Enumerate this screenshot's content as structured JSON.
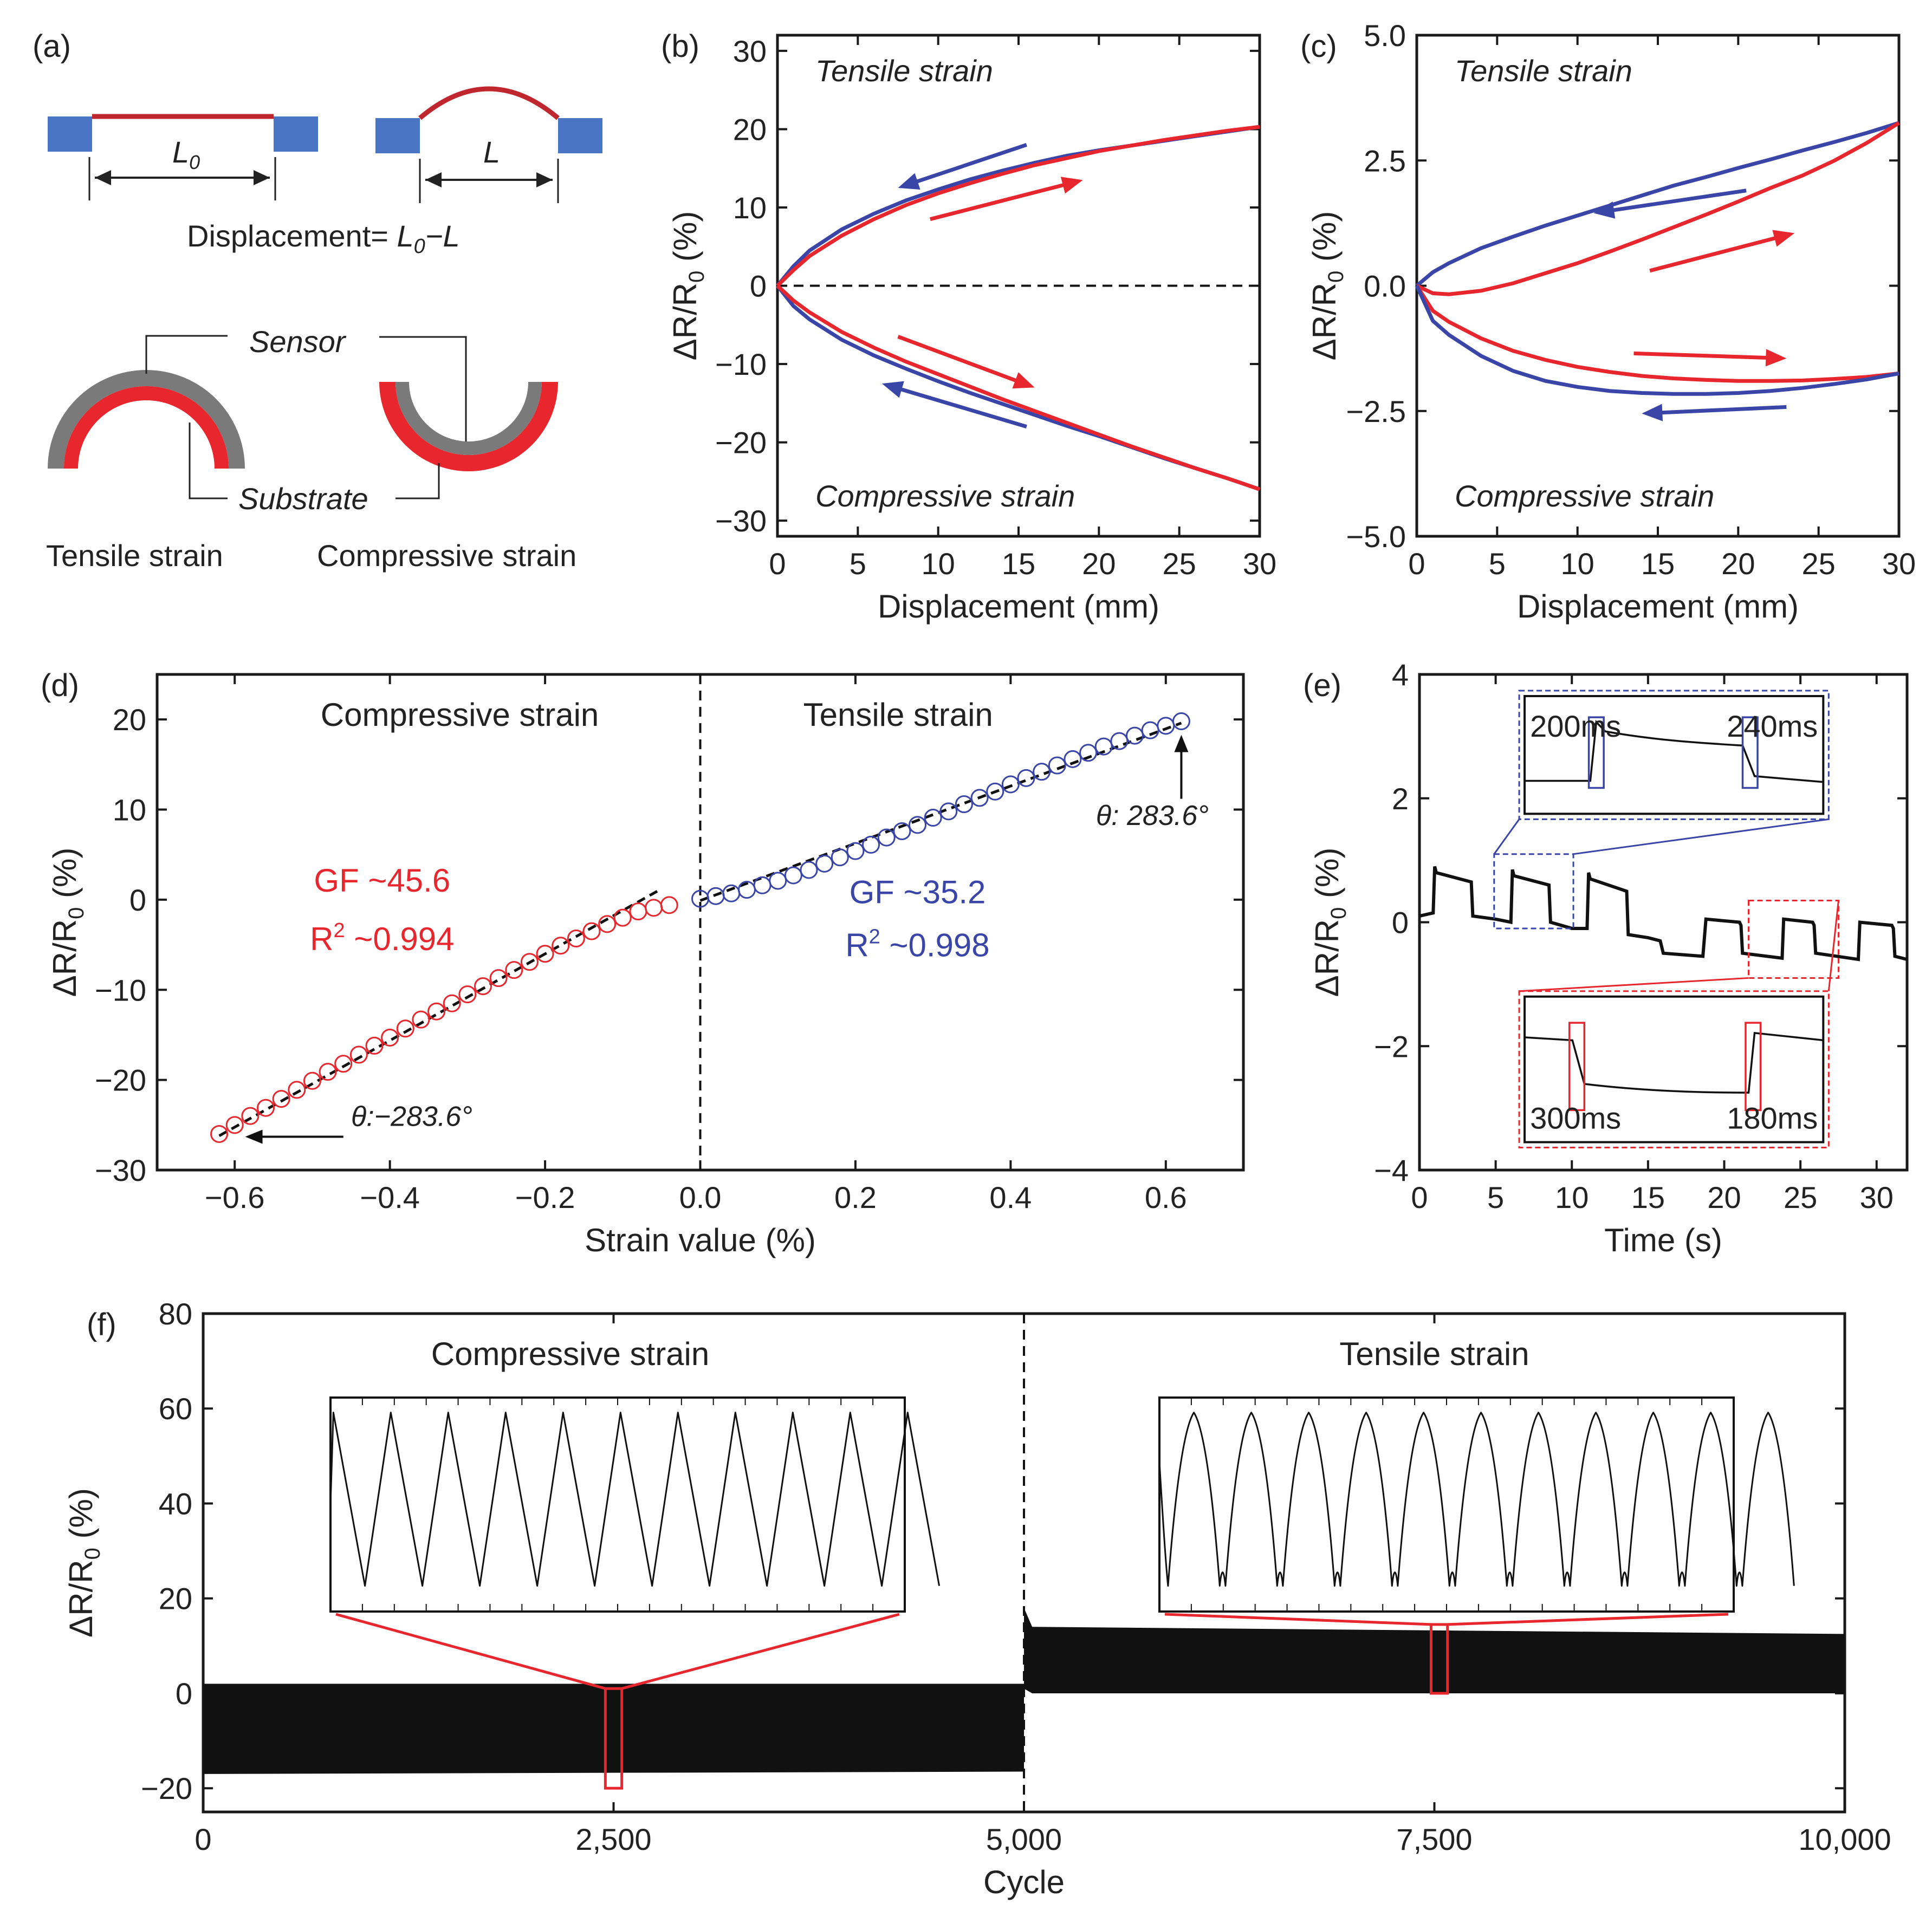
{
  "colors": {
    "red": "#e8262d",
    "blue": "#3a45a8",
    "block": "#4a74c4",
    "gray": "#777777",
    "axis": "#1a1a1a"
  },
  "panel_a": {
    "label": "(a)",
    "L0": "L",
    "L0_sub": "0",
    "L": "L",
    "displacement_prefix": "Displacement= ",
    "displacement_L0": "L",
    "displacement_sub": "0",
    "displacement_suffix": "−L",
    "sensor": "Sensor",
    "substrate": "Substrate",
    "tensile": "Tensile strain",
    "compressive": "Compressive strain"
  },
  "chart_data": [
    {
      "id": "b",
      "label": "(b)",
      "type": "line",
      "xlabel": "Displacement (mm)",
      "ylabel": "ΔR/R",
      "ylabel_sub": "0",
      "ylabel_unit": " (%)",
      "xlim": [
        0,
        30
      ],
      "ylim": [
        -32,
        32
      ],
      "xticks": [
        0,
        5,
        10,
        15,
        20,
        25,
        30
      ],
      "yticks": [
        -30,
        -20,
        -10,
        0,
        10,
        20,
        30
      ],
      "xtick_labels": [
        "0",
        "5",
        "10",
        "15",
        "20",
        "25",
        "30"
      ],
      "ytick_labels": [
        "−30",
        "−20",
        "−10",
        "0",
        "10",
        "20",
        "30"
      ],
      "annotations": {
        "top": "Tensile strain",
        "bottom": "Compressive strain"
      },
      "series": [
        {
          "color": "blue",
          "x": [
            0,
            1,
            2,
            4,
            6,
            8,
            10,
            12,
            14,
            16,
            18,
            20,
            22,
            24,
            26,
            28,
            30
          ],
          "y": [
            0,
            2.5,
            4.5,
            7.2,
            9.2,
            10.9,
            12.3,
            13.6,
            14.7,
            15.7,
            16.6,
            17.3,
            17.9,
            18.5,
            19.1,
            19.7,
            20.3
          ]
        },
        {
          "color": "red",
          "x": [
            0,
            1,
            2,
            4,
            6,
            8,
            10,
            12,
            14,
            16,
            18,
            20,
            22,
            24,
            26,
            28,
            30
          ],
          "y": [
            0,
            2.0,
            3.8,
            6.4,
            8.5,
            10.3,
            11.8,
            13.1,
            14.3,
            15.4,
            16.3,
            17.2,
            17.9,
            18.6,
            19.2,
            19.8,
            20.3
          ]
        },
        {
          "color": "blue",
          "x": [
            0,
            1,
            2,
            4,
            6,
            8,
            10,
            12,
            14,
            16,
            18,
            20,
            22,
            24,
            26,
            28,
            30
          ],
          "y": [
            0,
            -2.6,
            -4.3,
            -6.9,
            -8.9,
            -10.6,
            -12.2,
            -13.7,
            -15.1,
            -16.5,
            -17.9,
            -19.2,
            -20.6,
            -22.0,
            -23.3,
            -24.6,
            -26.0
          ]
        },
        {
          "color": "red",
          "x": [
            0,
            1,
            2,
            4,
            6,
            8,
            10,
            12,
            14,
            16,
            18,
            20,
            22,
            24,
            26,
            28,
            30
          ],
          "y": [
            0,
            -1.9,
            -3.4,
            -5.9,
            -7.9,
            -9.7,
            -11.3,
            -12.9,
            -14.5,
            -16.0,
            -17.5,
            -19.0,
            -20.5,
            -21.9,
            -23.3,
            -24.6,
            -26.0
          ]
        }
      ]
    },
    {
      "id": "c",
      "label": "(c)",
      "type": "line",
      "xlabel": "Displacement (mm)",
      "ylabel": "ΔR/R",
      "ylabel_sub": "0",
      "ylabel_unit": " (%)",
      "xlim": [
        0,
        30
      ],
      "ylim": [
        -5,
        5
      ],
      "xticks": [
        0,
        5,
        10,
        15,
        20,
        25,
        30
      ],
      "yticks": [
        -5,
        -2.5,
        0,
        2.5,
        5
      ],
      "xtick_labels": [
        "0",
        "5",
        "10",
        "15",
        "20",
        "25",
        "30"
      ],
      "ytick_labels": [
        "−5.0",
        "−2.5",
        "0.0",
        "2.5",
        "5.0"
      ],
      "annotations": {
        "top": "Tensile strain",
        "bottom": "Compressive strain"
      },
      "series": [
        {
          "color": "blue",
          "x": [
            0,
            1,
            2,
            4,
            6,
            8,
            10,
            12,
            14,
            16,
            18,
            20,
            22,
            24,
            26,
            28,
            30
          ],
          "y": [
            0,
            0.27,
            0.45,
            0.75,
            0.98,
            1.2,
            1.4,
            1.6,
            1.8,
            2.0,
            2.17,
            2.35,
            2.52,
            2.7,
            2.87,
            3.05,
            3.25
          ]
        },
        {
          "color": "red",
          "x": [
            0,
            1,
            2,
            4,
            6,
            8,
            10,
            12,
            14,
            16,
            18,
            20,
            22,
            24,
            26,
            28,
            30
          ],
          "y": [
            0,
            -0.15,
            -0.17,
            -0.1,
            0.05,
            0.25,
            0.45,
            0.68,
            0.92,
            1.17,
            1.42,
            1.68,
            1.95,
            2.2,
            2.5,
            2.85,
            3.25
          ]
        },
        {
          "color": "red",
          "x": [
            0,
            1,
            2,
            4,
            6,
            8,
            10,
            12,
            14,
            16,
            18,
            20,
            22,
            24,
            26,
            28,
            30
          ],
          "y": [
            0,
            -0.5,
            -0.72,
            -1.05,
            -1.3,
            -1.48,
            -1.62,
            -1.72,
            -1.8,
            -1.85,
            -1.88,
            -1.9,
            -1.9,
            -1.89,
            -1.86,
            -1.82,
            -1.75
          ]
        },
        {
          "color": "blue",
          "x": [
            0,
            1,
            2,
            4,
            6,
            8,
            10,
            12,
            14,
            16,
            18,
            20,
            22,
            24,
            26,
            28,
            30
          ],
          "y": [
            0,
            -0.7,
            -0.98,
            -1.4,
            -1.7,
            -1.9,
            -2.02,
            -2.1,
            -2.14,
            -2.16,
            -2.16,
            -2.14,
            -2.1,
            -2.04,
            -1.96,
            -1.87,
            -1.75
          ]
        }
      ]
    },
    {
      "id": "d",
      "label": "(d)",
      "type": "scatter",
      "xlabel": "Strain value (%)",
      "ylabel": "ΔR/R",
      "ylabel_sub": "0",
      "ylabel_unit": " (%)",
      "xlim": [
        -0.7,
        0.7
      ],
      "ylim": [
        -30,
        25
      ],
      "xticks": [
        -0.6,
        -0.4,
        -0.2,
        0.0,
        0.2,
        0.4,
        0.6
      ],
      "yticks": [
        -30,
        -20,
        -10,
        0,
        10,
        20
      ],
      "xtick_labels": [
        "−0.6",
        "−0.4",
        "−0.2",
        "0.0",
        "0.2",
        "0.4",
        "0.6"
      ],
      "ytick_labels": [
        "−30",
        "−20",
        "−10",
        "0",
        "10",
        "20"
      ],
      "annotations": {
        "left_title": "Compressive strain",
        "right_title": "Tensile strain",
        "gf_left": "GF ~45.6",
        "r2_left_a": "R",
        "r2_left_sup": "2",
        "r2_left_b": " ~0.994",
        "gf_right": "GF ~35.2",
        "r2_right_a": "R",
        "r2_right_sup": "2",
        "r2_right_b": " ~0.998",
        "theta_pos": "θ: 283.6°",
        "theta_neg": "θ:−283.6°"
      },
      "series": [
        {
          "color": "red",
          "x": [
            -0.62,
            -0.6,
            -0.58,
            -0.56,
            -0.54,
            -0.52,
            -0.5,
            -0.48,
            -0.46,
            -0.44,
            -0.42,
            -0.4,
            -0.38,
            -0.36,
            -0.34,
            -0.32,
            -0.3,
            -0.28,
            -0.26,
            -0.24,
            -0.22,
            -0.2,
            -0.18,
            -0.16,
            -0.14,
            -0.12,
            -0.1,
            -0.08,
            -0.06,
            -0.04
          ],
          "y": [
            -26.0,
            -25.0,
            -24.0,
            -23.1,
            -22.1,
            -21.1,
            -20.1,
            -19.1,
            -18.2,
            -17.2,
            -16.2,
            -15.3,
            -14.3,
            -13.3,
            -12.4,
            -11.5,
            -10.5,
            -9.6,
            -8.7,
            -7.8,
            -6.9,
            -6.0,
            -5.1,
            -4.3,
            -3.5,
            -2.7,
            -2.0,
            -1.3,
            -0.9,
            -0.6
          ]
        },
        {
          "color": "blue",
          "x": [
            0.0,
            0.02,
            0.04,
            0.06,
            0.08,
            0.1,
            0.12,
            0.14,
            0.16,
            0.18,
            0.2,
            0.22,
            0.24,
            0.26,
            0.28,
            0.3,
            0.32,
            0.34,
            0.36,
            0.38,
            0.4,
            0.42,
            0.44,
            0.46,
            0.48,
            0.5,
            0.52,
            0.54,
            0.56,
            0.58,
            0.6,
            0.62
          ],
          "y": [
            0.1,
            0.4,
            0.7,
            1.1,
            1.6,
            2.1,
            2.7,
            3.3,
            4.0,
            4.7,
            5.4,
            6.1,
            6.9,
            7.6,
            8.3,
            9.1,
            9.8,
            10.6,
            11.3,
            12.0,
            12.8,
            13.5,
            14.2,
            14.9,
            15.6,
            16.3,
            17.0,
            17.6,
            18.2,
            18.8,
            19.3,
            19.8
          ]
        }
      ]
    },
    {
      "id": "e",
      "label": "(e)",
      "type": "line",
      "xlabel": "Time (s)",
      "ylabel": "ΔR/R",
      "ylabel_sub": "0",
      "ylabel_unit": " (%)",
      "xlim": [
        0,
        32
      ],
      "ylim": [
        -4,
        4
      ],
      "xticks": [
        0,
        5,
        10,
        15,
        20,
        25,
        30
      ],
      "yticks": [
        -4,
        -2,
        0,
        2,
        4
      ],
      "xtick_labels": [
        "0",
        "5",
        "10",
        "15",
        "20",
        "25",
        "30"
      ],
      "ytick_labels": [
        "−4",
        "−2",
        "0",
        "2",
        "4"
      ],
      "annotations": {
        "t1": "200ms",
        "t2": "240ms",
        "t3": "300ms",
        "t4": "180ms"
      },
      "series": [
        {
          "color": "black",
          "x": [
            0,
            0.9,
            1.0,
            1.1,
            3.4,
            3.5,
            5.0,
            6.0,
            6.1,
            6.2,
            8.5,
            8.6,
            10.0,
            11.0,
            11.1,
            11.2,
            13.6,
            13.7,
            15.0,
            15.8,
            16.0,
            18.6,
            18.8,
            21.0,
            21.1,
            21.2,
            23.8,
            23.9,
            25.8,
            25.9,
            26.0,
            28.8,
            28.9,
            31.0,
            31.1,
            31.2,
            32
          ],
          "y": [
            0.1,
            0.15,
            0.9,
            0.8,
            0.65,
            0.1,
            0.05,
            0.0,
            0.85,
            0.75,
            0.6,
            0.0,
            -0.1,
            -0.1,
            0.8,
            0.7,
            0.5,
            -0.2,
            -0.25,
            -0.3,
            -0.5,
            -0.55,
            0.05,
            0.0,
            -0.05,
            -0.5,
            -0.58,
            0.05,
            0.0,
            -0.05,
            -0.5,
            -0.6,
            0.0,
            -0.05,
            -0.1,
            -0.55,
            -0.6
          ]
        }
      ]
    },
    {
      "id": "f",
      "label": "(f)",
      "type": "area",
      "xlabel": "Cycle",
      "ylabel": "ΔR/R",
      "ylabel_sub": "0",
      "ylabel_unit": " (%)",
      "xlim": [
        0,
        10000
      ],
      "ylim": [
        -25,
        80
      ],
      "xticks": [
        0,
        2500,
        5000,
        7500,
        10000
      ],
      "yticks": [
        -20,
        0,
        20,
        40,
        60,
        80
      ],
      "xtick_labels": [
        "0",
        "2,500",
        "5,000",
        "7,500",
        "10,000"
      ],
      "ytick_labels": [
        "−20",
        "0",
        "20",
        "40",
        "60",
        "80"
      ],
      "annotations": {
        "left_title": "Compressive strain",
        "right_title": "Tensile strain"
      },
      "series": [
        {
          "name": "compressive",
          "color": "black",
          "x": [
            0,
            5000
          ],
          "upper": [
            2,
            2
          ],
          "lower": [
            -17,
            -16.5
          ]
        },
        {
          "name": "tensile",
          "color": "black",
          "x": [
            5000,
            5050,
            10000
          ],
          "upper": [
            18,
            14,
            12.5
          ],
          "lower": [
            1,
            0,
            0
          ]
        }
      ]
    }
  ]
}
